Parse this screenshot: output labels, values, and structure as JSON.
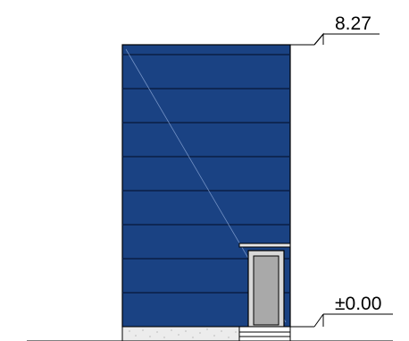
{
  "drawing": {
    "levels": [
      {
        "label": "8.27"
      },
      {
        "label": "±0.00"
      }
    ],
    "colors": {
      "facade_panel": "#1a4283",
      "panel_joint": "#0a1e45",
      "glazing": "#a9a9a9",
      "plinth": "#ececec",
      "outline": "#000000"
    }
  }
}
